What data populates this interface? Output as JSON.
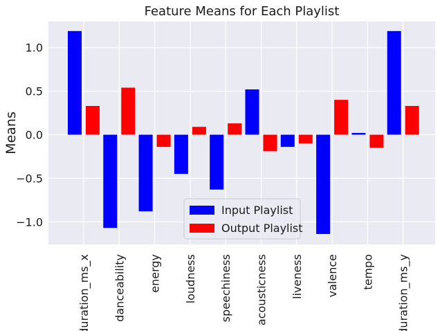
{
  "chart_data": {
    "type": "bar",
    "title": "Feature Means for Each Playlist",
    "xlabel": "",
    "ylabel": "Means",
    "categories": [
      "duration_ms_x",
      "danceability",
      "energy",
      "loudness",
      "speechiness",
      "acousticness",
      "liveness",
      "valence",
      "tempo",
      "duration_ms_y"
    ],
    "series": [
      {
        "name": "Input Playlist",
        "color": "#0000ff",
        "values": [
          1.19,
          -1.07,
          -0.88,
          -0.45,
          -0.63,
          0.52,
          -0.14,
          -1.14,
          0.02,
          1.19
        ]
      },
      {
        "name": "Output Playlist",
        "color": "#ff0000",
        "values": [
          0.33,
          0.54,
          -0.14,
          0.09,
          0.13,
          -0.19,
          -0.1,
          0.4,
          -0.15,
          0.33
        ]
      }
    ],
    "ylim": [
      -1.26,
      1.3
    ],
    "yticks": [
      1.0,
      0.5,
      0.0,
      -0.5,
      -1.0
    ],
    "ytick_labels": [
      "1.0",
      "0.5",
      "0.0",
      "−0.5",
      "−1.0"
    ],
    "grid": true,
    "background": "#eaeaf2",
    "legend_position": "lower-center"
  }
}
